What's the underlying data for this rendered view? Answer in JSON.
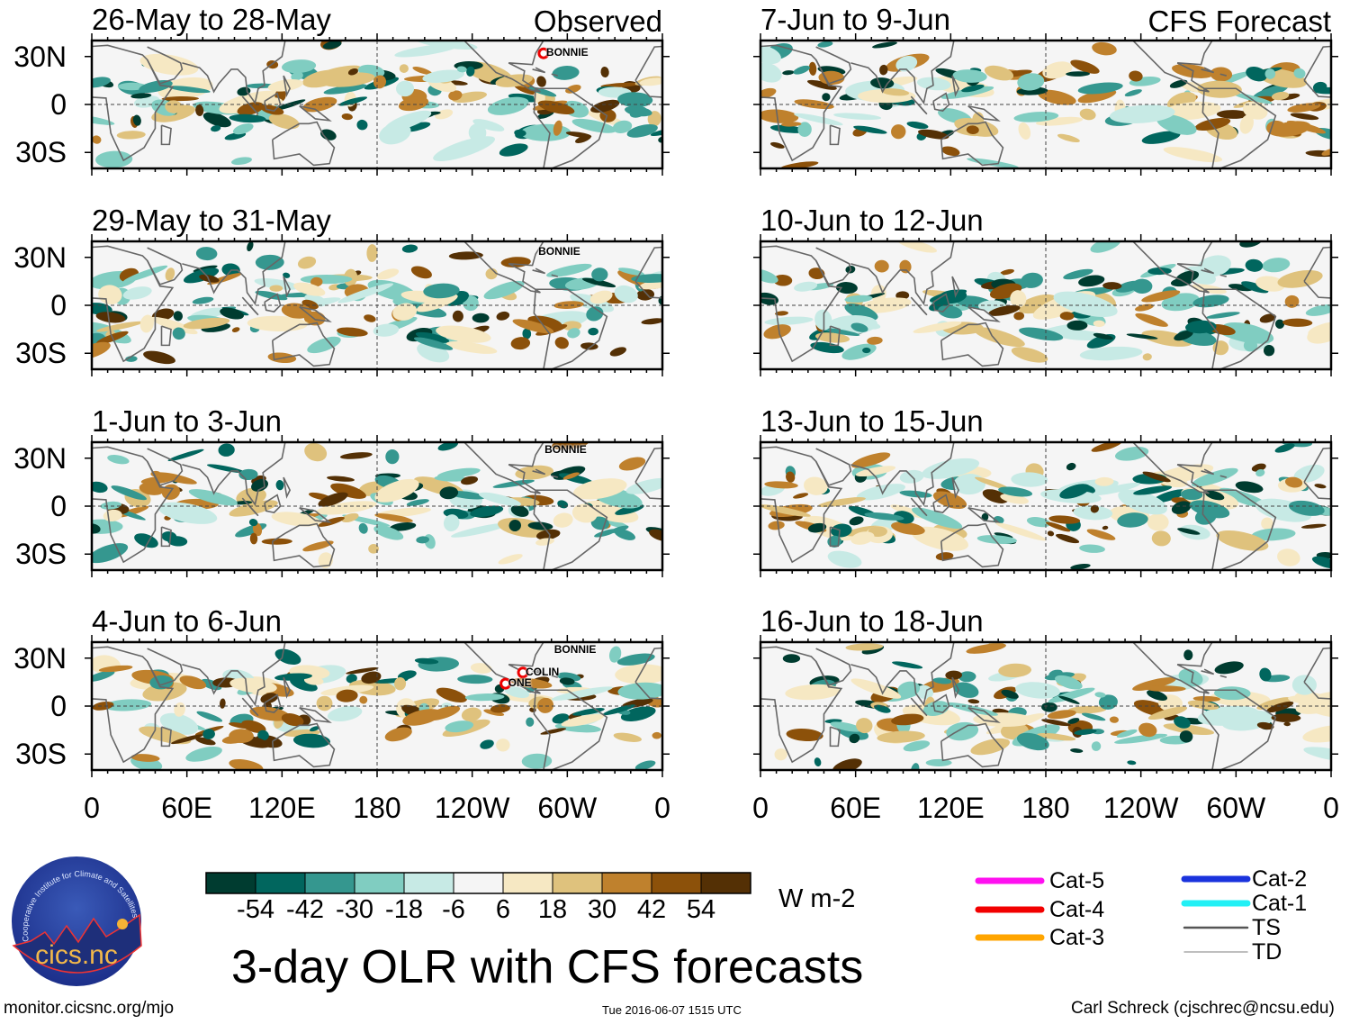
{
  "panels": [
    {
      "title": "26-May to 28-May",
      "corner": "Observed",
      "storms": [
        {
          "name": "BONNIE",
          "lon": 285,
          "lat": 32,
          "marker": true
        }
      ]
    },
    {
      "title": "29-May to 31-May",
      "corner": "",
      "storms": [
        {
          "name": "BONNIE",
          "lon": 280,
          "lat": 33,
          "marker": false
        }
      ]
    },
    {
      "title": "1-Jun to 3-Jun",
      "corner": "",
      "storms": [
        {
          "name": "BONNIE",
          "lon": 284,
          "lat": 35,
          "marker": false
        }
      ]
    },
    {
      "title": "4-Jun to 6-Jun",
      "corner": "",
      "storms": [
        {
          "name": "BONNIE",
          "lon": 290,
          "lat": 35,
          "marker": false
        },
        {
          "name": "COLIN",
          "lon": 272,
          "lat": 21,
          "marker": true
        },
        {
          "name": "ONE",
          "lon": 261,
          "lat": 14,
          "marker": true
        }
      ]
    },
    {
      "title": "7-Jun to 9-Jun",
      "corner": "CFS Forecast",
      "storms": []
    },
    {
      "title": "10-Jun to 12-Jun",
      "corner": "",
      "storms": []
    },
    {
      "title": "13-Jun to 15-Jun",
      "corner": "",
      "storms": []
    },
    {
      "title": "16-Jun to 18-Jun",
      "corner": "",
      "storms": []
    }
  ],
  "lat_labels": [
    "30N",
    "0",
    "30S"
  ],
  "lon_labels": [
    "0",
    "60E",
    "120E",
    "180",
    "120W",
    "60W",
    "0"
  ],
  "chart_data": {
    "type": "heatmap",
    "title": "3-day OLR with CFS forecasts",
    "units": "W m-2",
    "lon_range": [
      0,
      360
    ],
    "lat_range": [
      -40,
      40
    ],
    "colorbar": {
      "ticks": [
        "-54",
        "-42",
        "-30",
        "-18",
        "-6",
        "6",
        "18",
        "30",
        "42",
        "54"
      ],
      "colors": [
        "#003c30",
        "#01665e",
        "#35978f",
        "#80cdc1",
        "#c7eae5",
        "#f5f5f5",
        "#f6e8c3",
        "#dfc27d",
        "#bf812d",
        "#8c510a",
        "#543005"
      ]
    }
  },
  "legend": [
    {
      "label": "Cat-5",
      "color": "#ff10f0"
    },
    {
      "label": "Cat-4",
      "color": "#f20000"
    },
    {
      "label": "Cat-3",
      "color": "#ffa500"
    },
    {
      "label": "Cat-2",
      "color": "#1a33dd"
    },
    {
      "label": "Cat-1",
      "color": "#22f0f5"
    },
    {
      "label": "TS",
      "color": "#555555"
    },
    {
      "label": "TD",
      "color": "#aaaaaa"
    }
  ],
  "logo": {
    "text": "cics.nc",
    "ring_text": "Cooperative Institute for Climate and Satellites"
  },
  "footer": {
    "url": "monitor.cicsnc.org/mjo",
    "timestamp": "Tue 2016-06-07 1515 UTC",
    "credit": "Carl Schreck (cjschrec@ncsu.edu)"
  }
}
